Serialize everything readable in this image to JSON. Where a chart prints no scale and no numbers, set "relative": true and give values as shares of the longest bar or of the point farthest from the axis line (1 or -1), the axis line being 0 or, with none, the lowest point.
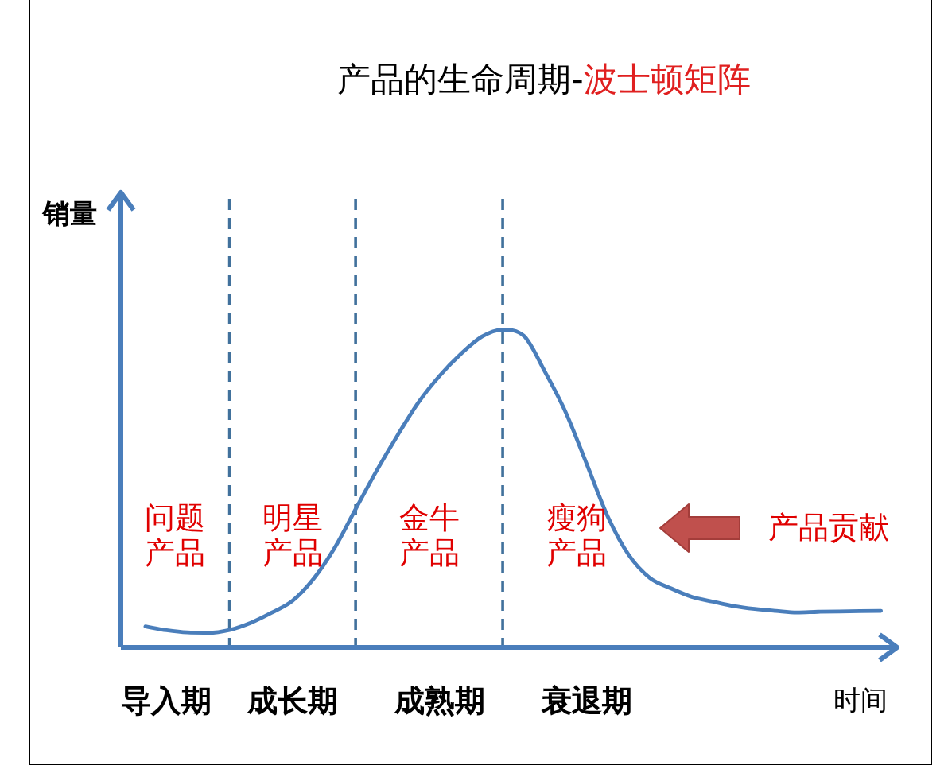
{
  "chart_data": {
    "type": "line",
    "title": "产品的生命周期-",
    "subtitle": "波士顿矩阵",
    "xlabel": "时间",
    "ylabel": "销量",
    "relative": true,
    "categories": [
      null,
      "导入期",
      null,
      null,
      null,
      null,
      null,
      "成长期",
      null,
      null,
      null,
      null,
      null,
      null,
      "成熟期",
      null,
      null,
      null,
      null,
      null,
      null,
      "衰退期",
      null,
      null,
      null,
      null,
      null,
      null,
      null,
      null,
      null,
      null,
      null,
      null,
      null,
      null
    ],
    "series": [
      {
        "color": "#4a7ebb",
        "values": [
          0.066,
          0.054,
          0.047,
          0.046,
          0.055,
          0.077,
          0.109,
          0.147,
          0.216,
          0.313,
          0.435,
          0.556,
          0.668,
          0.772,
          0.855,
          0.923,
          0.978,
          1,
          0.981,
          0.869,
          0.74,
          0.577,
          0.412,
          0.291,
          0.219,
          0.186,
          0.159,
          0.144,
          0.13,
          0.121,
          0.115,
          0.11,
          0.112,
          0.113,
          0.114,
          0.115
        ]
      }
    ],
    "annotations": [
      "问题产品",
      "明星产品",
      "金牛产品",
      "瘦狗产品",
      "产品贡献"
    ],
    "grid": "x",
    "line_style": "solid"
  }
}
